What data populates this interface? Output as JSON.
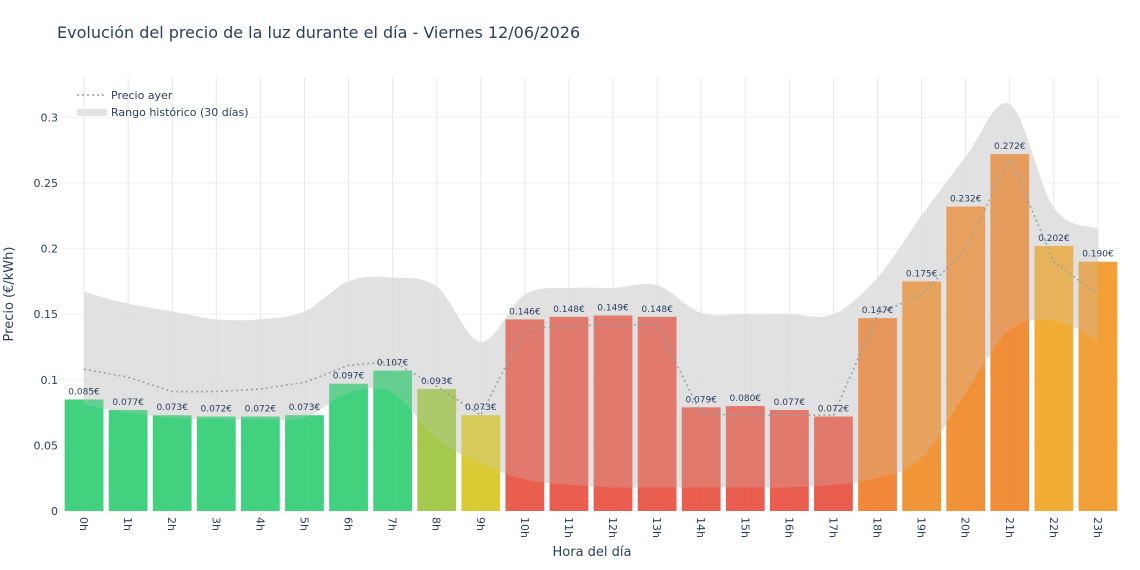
{
  "chart_data": {
    "type": "bar",
    "title": "Evolución del precio de la luz durante el día - Viernes 12/06/2026",
    "xlabel": "Hora del día",
    "ylabel": "Precio (€/kWh)",
    "ylim": [
      0,
      0.33
    ],
    "yticks": [
      0,
      0.05,
      0.1,
      0.15,
      0.2,
      0.25,
      0.3
    ],
    "ytick_labels": [
      "0",
      "0.05",
      "0.1",
      "0.15",
      "0.2",
      "0.25",
      "0.3"
    ],
    "grid": true,
    "legend_position": "top-left",
    "categories": [
      "0h",
      "1h",
      "2h",
      "3h",
      "4h",
      "5h",
      "6h",
      "7h",
      "8h",
      "9h",
      "10h",
      "11h",
      "12h",
      "13h",
      "14h",
      "15h",
      "16h",
      "17h",
      "18h",
      "19h",
      "20h",
      "21h",
      "22h",
      "23h"
    ],
    "values": [
      0.085,
      0.077,
      0.073,
      0.072,
      0.072,
      0.073,
      0.097,
      0.107,
      0.093,
      0.073,
      0.146,
      0.148,
      0.149,
      0.148,
      0.079,
      0.08,
      0.077,
      0.072,
      0.147,
      0.175,
      0.232,
      0.272,
      0.202,
      0.19
    ],
    "value_labels": [
      "0.085€",
      "0.077€",
      "0.073€",
      "0.072€",
      "0.072€",
      "0.073€",
      "0.097€",
      "0.107€",
      "0.093€",
      "0.073€",
      "0.146€",
      "0.148€",
      "0.149€",
      "0.148€",
      "0.079€",
      "0.080€",
      "0.077€",
      "0.072€",
      "0.147€",
      "0.175€",
      "0.232€",
      "0.272€",
      "0.202€",
      "0.190€"
    ],
    "bar_colors": [
      "#2ecc71",
      "#2ecc71",
      "#2ecc71",
      "#2ecc71",
      "#2ecc71",
      "#2ecc71",
      "#2ecc71",
      "#2ecc71",
      "#9bc33a",
      "#d6c51f",
      "#e74c3c",
      "#e74c3c",
      "#e74c3c",
      "#e74c3c",
      "#e74c3c",
      "#e74c3c",
      "#e74c3c",
      "#e74c3c",
      "#ef7a22",
      "#ef8a24",
      "#ef8624",
      "#ee8124",
      "#f0a420",
      "#ef9622"
    ],
    "series": [
      {
        "name": "Precio ayer",
        "style": "dotted-line",
        "color": "#95a5a6",
        "values": [
          0.108,
          0.102,
          0.091,
          0.091,
          0.093,
          0.098,
          0.111,
          0.114,
          0.095,
          0.073,
          0.139,
          0.141,
          0.142,
          0.142,
          0.074,
          0.073,
          0.073,
          0.073,
          0.15,
          0.165,
          0.2,
          0.269,
          0.19,
          0.165
        ]
      },
      {
        "name": "Rango histórico (30 días)",
        "style": "band",
        "color": "#e3e3e3",
        "upper": [
          0.167,
          0.158,
          0.152,
          0.146,
          0.146,
          0.152,
          0.175,
          0.178,
          0.171,
          0.129,
          0.165,
          0.17,
          0.17,
          0.172,
          0.151,
          0.15,
          0.15,
          0.15,
          0.178,
          0.225,
          0.27,
          0.31,
          0.231,
          0.215
        ],
        "lower": [
          0.081,
          0.075,
          0.071,
          0.07,
          0.07,
          0.071,
          0.09,
          0.09,
          0.055,
          0.036,
          0.024,
          0.02,
          0.018,
          0.018,
          0.018,
          0.018,
          0.018,
          0.02,
          0.025,
          0.04,
          0.09,
          0.138,
          0.145,
          0.13
        ]
      }
    ]
  }
}
